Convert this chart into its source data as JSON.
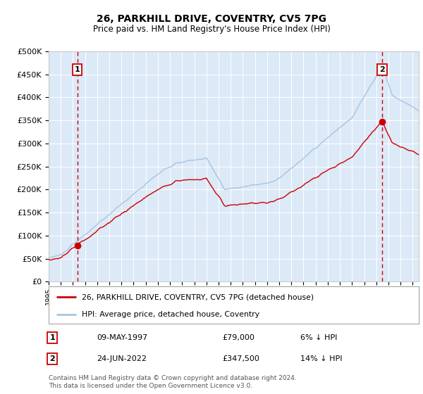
{
  "title": "26, PARKHILL DRIVE, COVENTRY, CV5 7PG",
  "subtitle": "Price paid vs. HM Land Registry's House Price Index (HPI)",
  "background_color": "#ffffff",
  "plot_bg_color": "#dce9f7",
  "grid_color": "#ffffff",
  "hpi_color": "#a8c4e0",
  "price_color": "#cc0000",
  "sale1_date_num": 1997.36,
  "sale1_price": 79000,
  "sale2_date_num": 2022.48,
  "sale2_price": 347500,
  "legend_label1": "26, PARKHILL DRIVE, COVENTRY, CV5 7PG (detached house)",
  "legend_label2": "HPI: Average price, detached house, Coventry",
  "footer": "Contains HM Land Registry data © Crown copyright and database right 2024.\nThis data is licensed under the Open Government Licence v3.0.",
  "ylim": [
    0,
    500000
  ],
  "xlim_start": 1995.0,
  "xlim_end": 2025.5
}
